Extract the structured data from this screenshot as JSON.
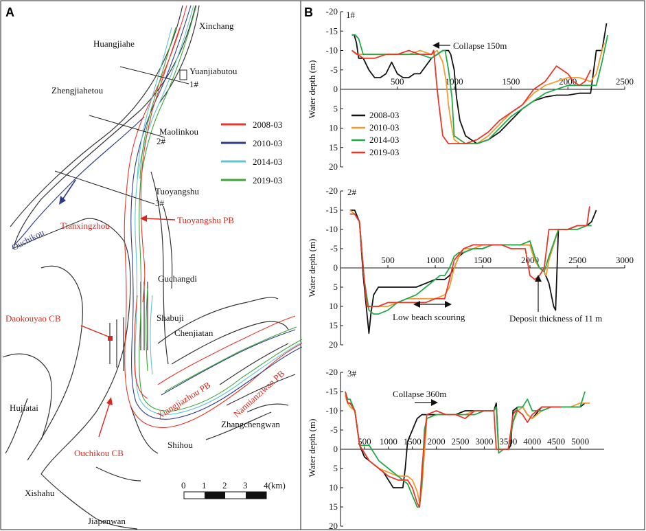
{
  "panels": {
    "a": "A",
    "b": "B"
  },
  "colors": {
    "2008-03": "#e8362a",
    "2010-03": "#2e3a8c",
    "2014-03": "#5fc4d0",
    "2019-03": "#3aa635",
    "black": "#111111",
    "orange": "#f59a2e",
    "green": "#23a94a",
    "red": "#e8362a",
    "label_red": "#d8281e"
  },
  "map": {
    "places": [
      "Xinchang",
      "Huangjiahe",
      "Yuanjiabutou",
      "Zhengjiahetou",
      "Maolinkou",
      "Tuoyangshu",
      "Guchangdi",
      "Shabuji",
      "Chenjiatan",
      "Hujiatai",
      "Zhangchengwan",
      "Shihou",
      "Xishahu",
      "Jiapenwan"
    ],
    "ouchikou": "Ouchikou",
    "red_labels": [
      "Tianxingzhou",
      "Tuoyangshu PB",
      "Daokouyao CB",
      "Xiangjiazhou PB",
      "Nannianziwan PB",
      "Ouchikou CB"
    ],
    "sections": [
      "1#",
      "2#",
      "3#"
    ],
    "legend": [
      {
        "label": "2008-03",
        "color": "#e8362a"
      },
      {
        "label": "2010-03",
        "color": "#2e3a8c"
      },
      {
        "label": "2014-03",
        "color": "#5fc4d0"
      },
      {
        "label": "2019-03",
        "color": "#3aa635"
      }
    ],
    "scale_ticks": [
      "0",
      "1",
      "2",
      "3",
      "4(km)"
    ]
  },
  "chart_data": [
    {
      "type": "line",
      "title": "1#",
      "ylabel": "Water depth (m)",
      "xlabel": "",
      "xlim": [
        0,
        2500
      ],
      "ylim": [
        -20,
        20
      ],
      "y_inverted": true,
      "xticks": [
        "500",
        "1000",
        "1500",
        "2000",
        "2500"
      ],
      "yticks": [
        "-20",
        "-15",
        "-10",
        "-5",
        "0",
        "5",
        "10",
        "15",
        "20"
      ],
      "legend": [
        "2008-03",
        "2010-03",
        "2014-03",
        "2019-03"
      ],
      "annotations": [
        {
          "text": "Collapse 150m"
        }
      ],
      "series": [
        {
          "name": "2008-03",
          "color": "black",
          "x": [
            100,
            120,
            140,
            160,
            200,
            250,
            300,
            350,
            400,
            450,
            500,
            550,
            600,
            650,
            700,
            800,
            850,
            900,
            950,
            970,
            1000,
            1020,
            1050,
            1100,
            1200,
            1300,
            1400,
            1500,
            1600,
            1700,
            1800,
            1900,
            2000,
            2100,
            2150,
            2200,
            2250,
            2300,
            2340
          ],
          "y": [
            -14,
            -14,
            -12,
            -8,
            -8,
            -5,
            -3,
            -3,
            -4,
            -7,
            -4,
            -3,
            -3,
            -4,
            -4,
            -8,
            -9,
            -10,
            -10,
            -9,
            -5,
            2,
            8,
            12,
            14,
            13,
            11,
            8,
            5,
            3,
            2,
            1.5,
            1.5,
            1,
            1,
            1,
            -10,
            -10,
            -17
          ]
        },
        {
          "name": "2010-03",
          "color": "orange",
          "x": [
            100,
            140,
            200,
            300,
            400,
            500,
            600,
            700,
            800,
            850,
            900,
            930,
            950,
            980,
            1000,
            1050,
            1100,
            1200,
            1300,
            1400,
            1500,
            1600,
            1700,
            1800,
            1900,
            2000,
            2100,
            2200,
            2250,
            2300,
            2320
          ],
          "y": [
            -10,
            -9,
            -9,
            -9,
            -9,
            -9,
            -9,
            -10,
            -9,
            -10,
            -7,
            -2,
            4,
            10,
            13,
            14,
            14,
            14,
            12,
            9,
            6,
            4,
            1,
            -1,
            -2,
            -3,
            -3,
            -2,
            -4,
            -10,
            -12
          ]
        },
        {
          "name": "2014-03",
          "color": "green",
          "x": [
            100,
            130,
            160,
            200,
            300,
            400,
            500,
            600,
            700,
            800,
            850,
            900,
            920,
            950,
            980,
            1000,
            1100,
            1200,
            1300,
            1400,
            1500,
            1600,
            1700,
            1800,
            1900,
            2000,
            2100,
            2200,
            2250,
            2300,
            2350
          ],
          "y": [
            -14,
            -14,
            -13,
            -9,
            -9,
            -9,
            -9,
            -9,
            -9,
            -8,
            -9,
            -10,
            -10,
            -5,
            2,
            12,
            14,
            14,
            13,
            10,
            7,
            5,
            3,
            1,
            0,
            -1,
            -1,
            -1,
            -1,
            -7,
            -14
          ]
        },
        {
          "name": "2019-03",
          "color": "red",
          "x": [
            100,
            150,
            200,
            300,
            400,
            500,
            600,
            700,
            800,
            820,
            850,
            870,
            900,
            950,
            1000,
            1100,
            1200,
            1300,
            1400,
            1500,
            1600,
            1650,
            1700,
            1750,
            1800,
            1850,
            1900,
            1950,
            2000,
            2050,
            2100,
            2150,
            2200
          ],
          "y": [
            -10,
            -9,
            -8,
            -8,
            -9,
            -9,
            -10,
            -9,
            -9,
            -10,
            0,
            5,
            12,
            14,
            14,
            14,
            13,
            11,
            8,
            6,
            4,
            2,
            0,
            -1,
            -2,
            -4,
            -6,
            -5,
            -4,
            -2,
            -1,
            -2,
            -5
          ]
        }
      ]
    },
    {
      "type": "line",
      "title": "2#",
      "ylabel": "Water depth (m)",
      "xlabel": "",
      "xlim": [
        0,
        3000
      ],
      "ylim": [
        -20,
        20
      ],
      "y_inverted": true,
      "xticks": [
        "500",
        "1000",
        "1500",
        "2000",
        "2500",
        "3000"
      ],
      "yticks": [
        "-20",
        "-15",
        "-10",
        "-5",
        "0",
        "5",
        "10",
        "15",
        "20"
      ],
      "legend": [],
      "annotations": [
        {
          "text": "Low beach scouring"
        },
        {
          "text": "Deposit thickness of 11 m"
        }
      ],
      "series": [
        {
          "name": "2008-03",
          "color": "black",
          "x": [
            100,
            150,
            200,
            240,
            280,
            300,
            320,
            350,
            400,
            500,
            600,
            700,
            800,
            900,
            1000,
            1100,
            1150,
            1200,
            1250,
            1300,
            1400,
            1500,
            1600,
            1700,
            1800,
            1900,
            2000,
            2050,
            2100,
            2150,
            2200,
            2250,
            2270,
            2300,
            2400,
            2500,
            2600,
            2650,
            2700
          ],
          "y": [
            -15,
            -15,
            -12,
            2,
            12,
            17,
            12,
            7,
            5,
            5,
            5,
            5,
            5,
            4,
            3,
            3,
            2,
            0,
            -3,
            -4,
            -5,
            -5,
            -6,
            -6,
            -6,
            -6,
            -6,
            -2,
            0,
            1,
            4,
            10,
            11,
            -10,
            -10,
            -11,
            -11,
            -12,
            -15
          ]
        },
        {
          "name": "2010-03",
          "color": "orange",
          "x": [
            100,
            150,
            200,
            250,
            280,
            300,
            400,
            500,
            600,
            700,
            800,
            900,
            1000,
            1100,
            1150,
            1200,
            1250,
            1300,
            1400,
            1500,
            1600,
            1700,
            1800,
            1900,
            2000,
            2050,
            2100,
            2150,
            2170,
            2200,
            2300,
            2400,
            2500,
            2600,
            2650
          ],
          "y": [
            -15,
            -14,
            -12,
            3,
            10,
            10,
            10,
            10,
            9,
            8,
            8,
            8,
            8,
            7,
            5,
            0,
            -3,
            -5,
            -5,
            -6,
            -6,
            -6,
            -6,
            -6,
            -6,
            -2,
            0,
            1,
            2,
            -2,
            -10,
            -10,
            -11,
            -11,
            -11
          ]
        },
        {
          "name": "2014-03",
          "color": "green",
          "x": [
            100,
            150,
            200,
            250,
            300,
            350,
            400,
            500,
            600,
            700,
            800,
            900,
            1000,
            1050,
            1100,
            1150,
            1200,
            1250,
            1300,
            1400,
            1500,
            1600,
            1700,
            1800,
            1900,
            2000,
            2050,
            2100,
            2150,
            2200,
            2300,
            2400,
            2500,
            2600,
            2650
          ],
          "y": [
            -14,
            -14,
            -12,
            3,
            11,
            12,
            12,
            11,
            9,
            8,
            7,
            5,
            3,
            2,
            2,
            0,
            -3,
            -4,
            -4,
            -5,
            -5,
            -6,
            -6,
            -6,
            -6,
            -7,
            -3,
            0,
            1,
            -3,
            -10,
            -10,
            -10,
            -11,
            -11
          ]
        },
        {
          "name": "2019-03",
          "color": "red",
          "x": [
            100,
            150,
            200,
            250,
            280,
            300,
            400,
            500,
            600,
            700,
            800,
            900,
            1000,
            1100,
            1150,
            1200,
            1300,
            1400,
            1500,
            1600,
            1700,
            1800,
            1900,
            1950,
            2000,
            2050,
            2100,
            2150,
            2200,
            2300,
            2400,
            2500,
            2600,
            2630
          ],
          "y": [
            -14,
            -14,
            -12,
            3,
            10,
            10,
            10,
            9,
            9,
            9,
            9,
            9,
            8,
            8,
            3,
            -2,
            -5,
            -6,
            -6,
            -6,
            -6,
            -5,
            -5,
            -5,
            2,
            3,
            2,
            0,
            -10,
            -10,
            -10,
            -11,
            -11,
            -16
          ]
        }
      ]
    },
    {
      "type": "line",
      "title": "3#",
      "ylabel": "Water depth (m)",
      "xlabel": "",
      "xlim": [
        0,
        5500
      ],
      "ylim": [
        -20,
        20
      ],
      "y_inverted": true,
      "xticks": [
        "500",
        "1000",
        "1500",
        "2000",
        "2500",
        "3000",
        "3500",
        "4000",
        "4500",
        "5000"
      ],
      "yticks": [
        "-20",
        "-15",
        "-10",
        "-5",
        "0",
        "5",
        "10",
        "15",
        "20"
      ],
      "legend": [],
      "annotations": [
        {
          "text": "Collapse 360m"
        }
      ],
      "series": [
        {
          "name": "2008-03",
          "color": "black",
          "x": [
            100,
            150,
            200,
            300,
            400,
            500,
            600,
            700,
            800,
            900,
            1000,
            1100,
            1200,
            1300,
            1350,
            1400,
            1500,
            1600,
            1700,
            1800,
            2000,
            2200,
            2400,
            2600,
            2800,
            3000,
            3200,
            3250,
            3300,
            3400,
            3500,
            3550,
            3600,
            3700,
            3800,
            3900,
            4000,
            4200,
            4400,
            4600,
            4800,
            5000,
            5100
          ],
          "y": [
            -14,
            -12,
            -12,
            -10,
            -1,
            2,
            3,
            4,
            5,
            6,
            8,
            10,
            10,
            10,
            5,
            -2,
            -5,
            -8,
            -9,
            -9,
            -9,
            -9,
            -9,
            -10,
            -10,
            -10,
            -10,
            -12,
            0,
            0,
            0,
            -1,
            -10,
            -11,
            -11,
            -9,
            -8,
            -11,
            -11,
            -11,
            -11,
            -11,
            -12
          ]
        },
        {
          "name": "2010-03",
          "color": "orange",
          "x": [
            100,
            150,
            200,
            300,
            400,
            500,
            600,
            800,
            1000,
            1200,
            1400,
            1500,
            1600,
            1650,
            1700,
            1800,
            2000,
            2200,
            2400,
            2600,
            2800,
            3000,
            3200,
            3250,
            3300,
            3400,
            3500,
            3600,
            3700,
            3800,
            3900,
            4000,
            4200,
            4400,
            4600,
            4800,
            5000,
            5200
          ],
          "y": [
            -14,
            -12,
            -11,
            -10,
            -1,
            1,
            3,
            5,
            6,
            7,
            7,
            8,
            11,
            14,
            10,
            -8,
            -9,
            -9,
            -9,
            -9,
            -10,
            -10,
            -10,
            -11,
            0,
            0,
            0,
            -7,
            -10,
            -11,
            -9,
            -8,
            -10,
            -11,
            -11,
            -11,
            -12,
            -12
          ]
        },
        {
          "name": "2014-03",
          "color": "green",
          "x": [
            100,
            150,
            200,
            300,
            400,
            500,
            600,
            800,
            1000,
            1200,
            1400,
            1500,
            1600,
            1650,
            1700,
            1750,
            1800,
            2000,
            2200,
            2400,
            2600,
            2800,
            3000,
            3200,
            3250,
            3300,
            3400,
            3500,
            3600,
            3700,
            3800,
            3900,
            4000,
            4200,
            4400,
            4600,
            4800,
            5000,
            5100
          ],
          "y": [
            -15,
            -13,
            -13,
            -10,
            -1,
            -1,
            -1,
            3,
            5,
            7,
            9,
            12,
            15,
            15,
            8,
            -5,
            -8,
            -9,
            -9,
            -9,
            -9,
            -9,
            -10,
            -10,
            -11,
            1,
            0,
            0,
            -7,
            -11,
            -11,
            -13,
            -10,
            -10,
            -11,
            -11,
            -11,
            -11,
            -15
          ]
        },
        {
          "name": "2019-03",
          "color": "red",
          "x": [
            100,
            150,
            200,
            300,
            400,
            500,
            600,
            800,
            1000,
            1200,
            1400,
            1500,
            1600,
            1650,
            1700,
            1800,
            2000,
            2200,
            2400,
            2600,
            2800,
            3000,
            3150,
            3200,
            3250,
            3300,
            3400,
            3500,
            3600,
            3650,
            3700,
            3800,
            3900,
            4000,
            4200,
            4400,
            4600
          ],
          "y": [
            -15,
            -12,
            -12,
            -10,
            -1,
            1,
            3,
            5,
            7,
            8,
            8,
            10,
            14,
            15,
            5,
            -9,
            -10,
            -9,
            -9,
            -8,
            -10,
            -10,
            -10,
            -10,
            0,
            0,
            0,
            0,
            -9,
            -10,
            -10,
            -9,
            -7,
            -9,
            -11,
            -11,
            -11
          ]
        }
      ]
    }
  ]
}
